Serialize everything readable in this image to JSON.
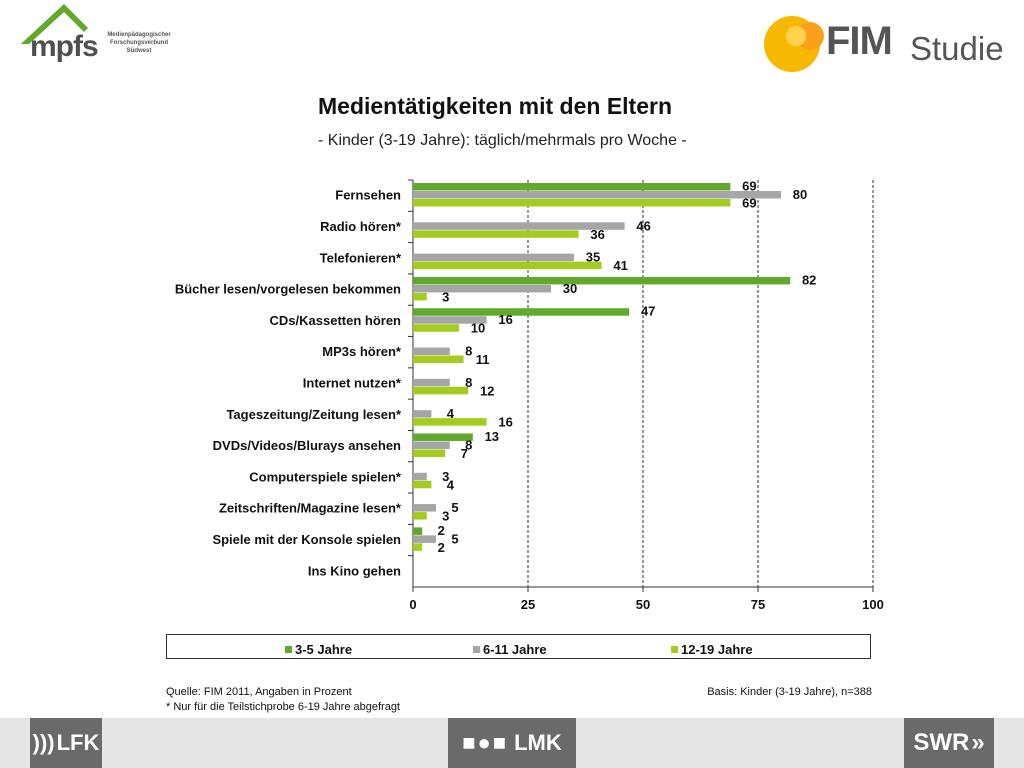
{
  "logos": {
    "mpfs": {
      "brand": "mpfs",
      "line1": "Medienpädagogischer",
      "line2": "Forschungsverbund",
      "line3": "Südwest",
      "color": "#62a82d"
    },
    "fim": {
      "fim": "FIM",
      "studie": "Studie",
      "circle_colors": [
        "#f7b800",
        "#f9a11b"
      ]
    }
  },
  "legend": {
    "items": [
      {
        "label": "3-5 Jahre",
        "color": "#62a82d"
      },
      {
        "label": "6-11 Jahre",
        "color": "#a6a6a6"
      },
      {
        "label": "12-19 Jahre",
        "color": "#a4cc1f"
      }
    ]
  },
  "footer": {
    "source": "Quelle: FIM 2011, Angaben in Prozent",
    "note": "* Nur für die Teilstichprobe 6-19 Jahre abgefragt",
    "basis": "Basis: Kinder (3-19 Jahre), n=388"
  },
  "bottom_logos": {
    "lfk": "LFK",
    "lmk": "LMK",
    "swr": "SWR"
  },
  "chart_data": {
    "type": "bar",
    "orientation": "horizontal",
    "title": "Medientätigkeiten mit den Eltern",
    "subtitle": "- Kinder (3-19 Jahre): täglich/mehrmals pro Woche -",
    "categories": [
      "Fernsehen",
      "Radio hören*",
      "Telefonieren*",
      "Bücher lesen/vorgelesen bekommen",
      "CDs/Kassetten hören",
      "MP3s hören*",
      "Internet nutzen*",
      "Tageszeitung/Zeitung lesen*",
      "DVDs/Videos/Blurays ansehen",
      "Computerspiele spielen*",
      "Zeitschriften/Magazine lesen*",
      "Spiele mit der Konsole spielen",
      "Ins Kino gehen"
    ],
    "series": [
      {
        "name": "3-5 Jahre",
        "color": "#62a82d",
        "values": [
          69,
          null,
          null,
          82,
          47,
          null,
          null,
          null,
          13,
          null,
          null,
          2,
          null
        ]
      },
      {
        "name": "6-11 Jahre",
        "color": "#a6a6a6",
        "values": [
          80,
          46,
          35,
          30,
          16,
          8,
          8,
          4,
          8,
          3,
          5,
          5,
          null
        ]
      },
      {
        "name": "12-19 Jahre",
        "color": "#a4cc1f",
        "values": [
          69,
          36,
          41,
          3,
          10,
          11,
          12,
          16,
          7,
          4,
          3,
          2,
          null
        ]
      }
    ],
    "xlim": [
      0,
      100
    ],
    "xticks": [
      0,
      25,
      50,
      75,
      100
    ],
    "grid": true,
    "legend_position": "bottom"
  }
}
